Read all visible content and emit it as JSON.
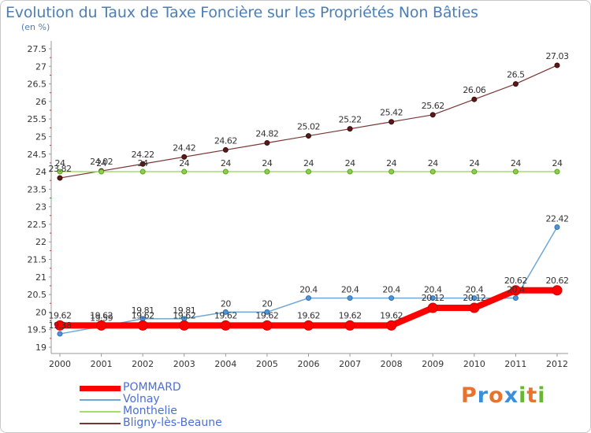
{
  "title": "Evolution du Taux de Taxe Foncière sur les Propriétés Non Bâties",
  "unit_label": "(en %)",
  "logo": {
    "text": "Proxiti",
    "colors": [
      "#e8732c",
      "#3a8fd8",
      "#e8732c",
      "#3a8fd8",
      "#66b832",
      "#e8732c",
      "#66b832"
    ]
  },
  "chart_data": {
    "type": "line",
    "title": "Evolution du Taux de Taxe Foncière sur les Propriétés Non Bâties",
    "ylabel": "(en %)",
    "xlabel": "",
    "x": [
      "2000",
      "2001",
      "2002",
      "2003",
      "2004",
      "2005",
      "2006",
      "2007",
      "2008",
      "2009",
      "2010",
      "2011",
      "2012"
    ],
    "yticks": [
      "19",
      "19.5",
      "20",
      "20.5",
      "21",
      "21.5",
      "22",
      "22.5",
      "23",
      "23.5",
      "24",
      "24.5",
      "25",
      "25.5",
      "26",
      "26.5",
      "27",
      "27.5"
    ],
    "ylim": [
      19,
      27.5
    ],
    "grid": false,
    "legend": "bottom-left",
    "series": [
      {
        "name": "POMMARD",
        "color": "#ff0000",
        "values": [
          19.62,
          19.62,
          19.62,
          19.62,
          19.62,
          19.62,
          19.62,
          19.62,
          19.62,
          20.12,
          20.12,
          20.62,
          20.62
        ],
        "labels": [
          "19.62",
          "19.62",
          "19.62",
          "19.62",
          "19.62",
          "19.62",
          "19.62",
          "19.62",
          "19.62",
          "20.12",
          "20.12",
          "20.62",
          "20.62"
        ]
      },
      {
        "name": "Volnay",
        "color": "#6fa6d6",
        "values": [
          19.38,
          19.59,
          19.81,
          19.81,
          20,
          20,
          20.4,
          20.4,
          20.4,
          20.4,
          20.4,
          20.4,
          22.42
        ],
        "labels": [
          "19.38",
          "19.59",
          "19.81",
          "19.81",
          "20",
          "20",
          "20.4",
          "20.4",
          "20.4",
          "20.4",
          "20.4",
          "20.4",
          "22.42"
        ]
      },
      {
        "name": "Monthelie",
        "color": "#a5dc70",
        "values": [
          24,
          24,
          24,
          24,
          24,
          24,
          24,
          24,
          24,
          24,
          24,
          24,
          24
        ],
        "labels": [
          "24",
          "24",
          "24",
          "24",
          "24",
          "24",
          "24",
          "24",
          "24",
          "24",
          "24",
          "24",
          "24"
        ]
      },
      {
        "name": "Bligny-lès-Beaune",
        "color": "#7b3434",
        "values": [
          23.82,
          24.02,
          24.22,
          24.42,
          24.62,
          24.82,
          25.02,
          25.22,
          25.42,
          25.62,
          26.06,
          26.5,
          27.03
        ],
        "labels": [
          "23.82",
          "24.02",
          "24.22",
          "24.42",
          "24.62",
          "24.82",
          "25.02",
          "25.22",
          "25.42",
          "25.62",
          "26.06",
          "26.5",
          "27.03"
        ]
      }
    ]
  }
}
